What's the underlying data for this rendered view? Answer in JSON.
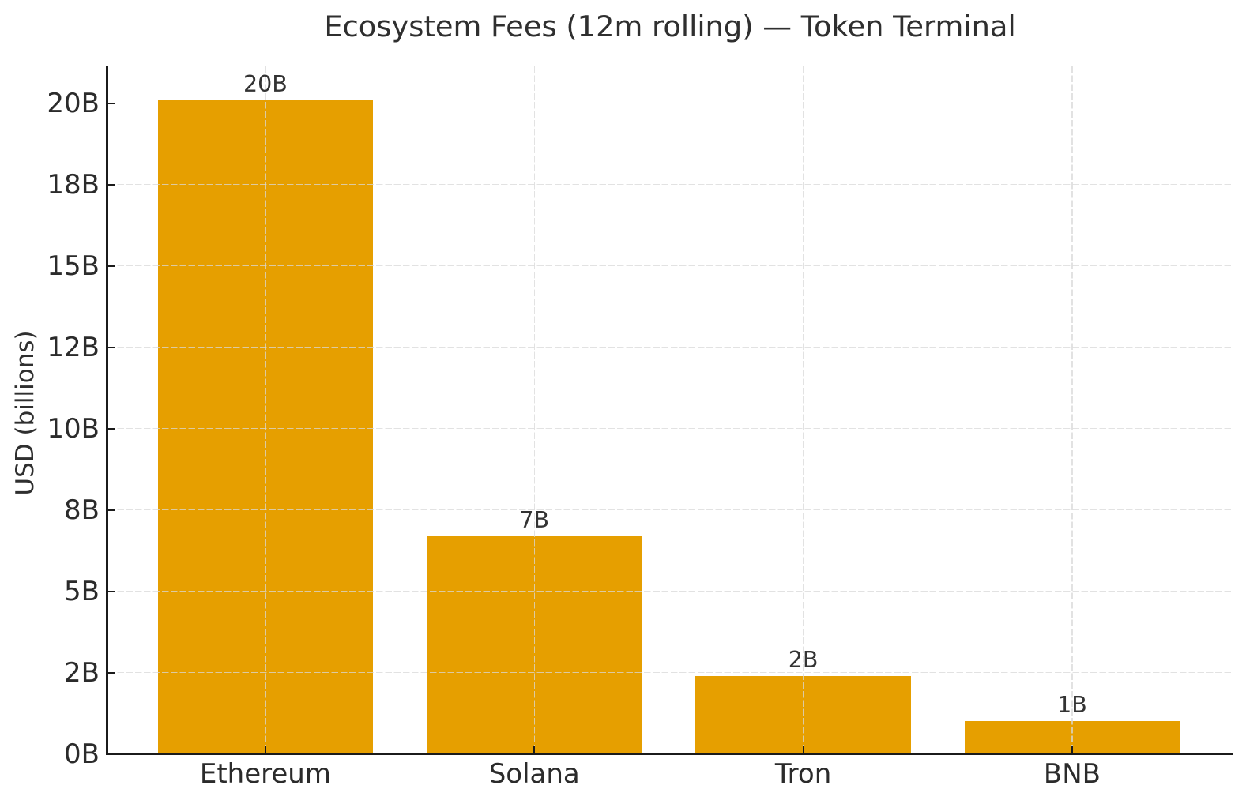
{
  "chart_data": {
    "type": "bar",
    "title": "Ecosystem Fees (12m rolling) — Token Terminal",
    "xlabel": "",
    "ylabel": "USD (billions)",
    "categories": [
      "Ethereum",
      "Solana",
      "Tron",
      "BNB"
    ],
    "values": [
      20.1,
      6.7,
      2.4,
      1.0
    ],
    "bar_labels": [
      "20B",
      "7B",
      "2B",
      "1B"
    ],
    "yticks": [
      {
        "value": 0,
        "label": "0B"
      },
      {
        "value": 2.5,
        "label": "2B"
      },
      {
        "value": 5,
        "label": "5B"
      },
      {
        "value": 7.5,
        "label": "8B"
      },
      {
        "value": 10,
        "label": "10B"
      },
      {
        "value": 12.5,
        "label": "12B"
      },
      {
        "value": 15,
        "label": "15B"
      },
      {
        "value": 17.5,
        "label": "18B"
      },
      {
        "value": 20,
        "label": "20B"
      }
    ],
    "ylim": [
      0,
      21.1
    ],
    "unit": "USD (billions)",
    "grid": true,
    "grid_style": "dashed",
    "legend": false,
    "colors": {
      "bar": "#E69F00",
      "background": "#FFFFFF",
      "text": "#2B2B2B",
      "axis": "#1B1B1B",
      "grid": "#D9D9D9"
    }
  }
}
